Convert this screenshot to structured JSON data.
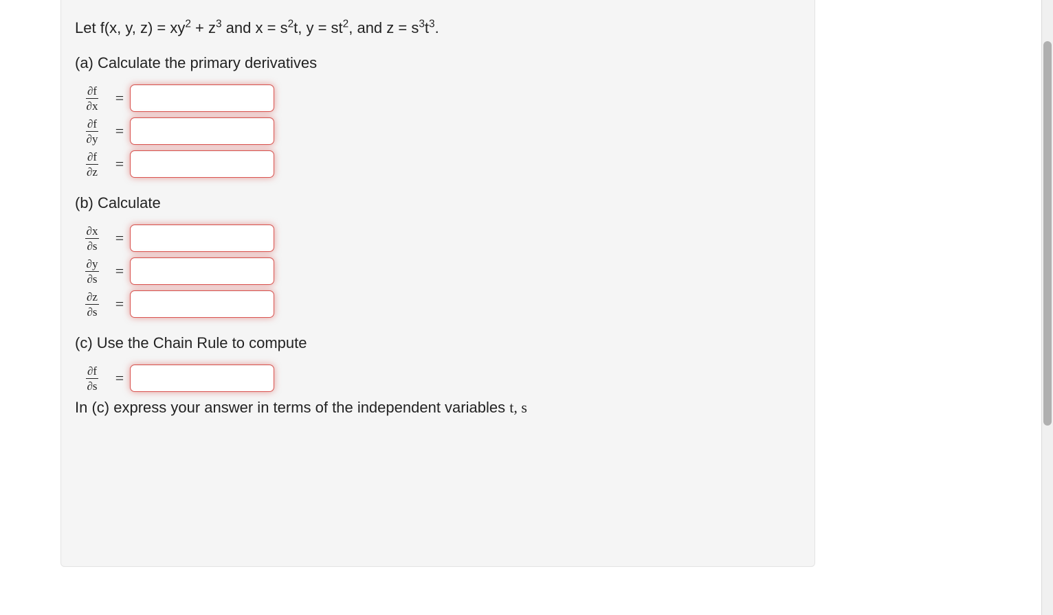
{
  "problem": {
    "intro_plain": "Let f(x, y, z) = xy² + z³ and x = s²t, y = st², and z = s³t³."
  },
  "parts": {
    "a": {
      "label": "(a) Calculate the primary derivatives",
      "rows": [
        {
          "frac_num": "∂f",
          "frac_den": "∂x"
        },
        {
          "frac_num": "∂f",
          "frac_den": "∂y"
        },
        {
          "frac_num": "∂f",
          "frac_den": "∂z"
        }
      ]
    },
    "b": {
      "label": "(b) Calculate",
      "rows": [
        {
          "frac_num": "∂x",
          "frac_den": "∂s"
        },
        {
          "frac_num": "∂y",
          "frac_den": "∂s"
        },
        {
          "frac_num": "∂z",
          "frac_den": "∂s"
        }
      ]
    },
    "c": {
      "label": "(c) Use the Chain Rule to compute",
      "row": {
        "frac_num": "∂f",
        "frac_den": "∂s"
      },
      "note": "In (c) express your answer in terms of the independent variables t, s"
    }
  },
  "symbols": {
    "equals": "="
  },
  "style": {
    "input_border_color": "#d9534f",
    "panel_bg": "#f5f5f5"
  }
}
